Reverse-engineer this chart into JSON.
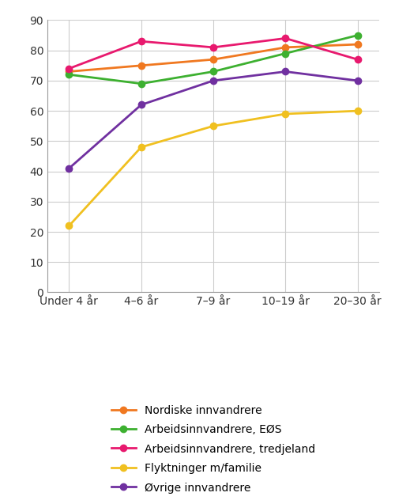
{
  "categories": [
    "Under 4 år",
    "4–6 år",
    "7–9 år",
    "10–19 år",
    "20–30 år"
  ],
  "series": [
    {
      "label": "Nordiske innvandrere",
      "color": "#f07820",
      "values": [
        73,
        75,
        77,
        81,
        82
      ]
    },
    {
      "label": "Arbeidsinnvandrere, EØS",
      "color": "#3db030",
      "values": [
        72,
        69,
        73,
        79,
        85
      ]
    },
    {
      "label": "Arbeidsinnvandrere, tredjeland",
      "color": "#e8196e",
      "values": [
        74,
        83,
        81,
        84,
        77
      ]
    },
    {
      "label": "Flyktninger m/familie",
      "color": "#f0c020",
      "values": [
        22,
        48,
        55,
        59,
        60
      ]
    },
    {
      "label": "Øvrige innvandrere",
      "color": "#7030a0",
      "values": [
        41,
        62,
        70,
        73,
        70
      ]
    }
  ],
  "ylim": [
    0,
    90
  ],
  "yticks": [
    0,
    10,
    20,
    30,
    40,
    50,
    60,
    70,
    80,
    90
  ],
  "grid_color": "#cccccc",
  "background_color": "#ffffff",
  "marker": "o",
  "marker_size": 6,
  "linewidth": 2.0,
  "figsize": [
    5.0,
    6.37
  ],
  "dpi": 100
}
